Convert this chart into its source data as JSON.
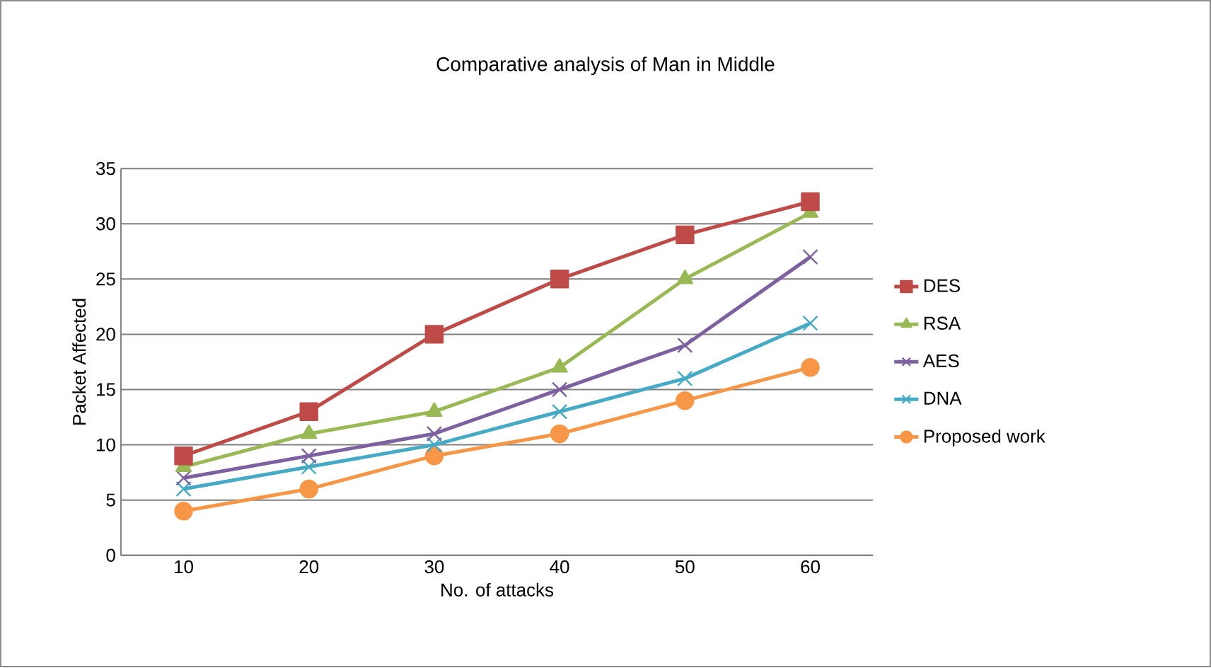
{
  "chart_data": {
    "type": "line",
    "title": "Comparative  analysis  of Man  in Middle",
    "xlabel": "No. of attacks",
    "ylabel": "Packet Affected",
    "categories": [
      "10",
      "20",
      "30",
      "40",
      "50",
      "60"
    ],
    "series": [
      {
        "name": "DES",
        "color": "#be4b48",
        "marker": "square",
        "values": [
          9,
          13,
          20,
          25,
          29,
          32
        ]
      },
      {
        "name": "RSA",
        "color": "#98b954",
        "marker": "triangle",
        "values": [
          8,
          11,
          13,
          17,
          25,
          31
        ]
      },
      {
        "name": "AES",
        "color": "#7d60a0",
        "marker": "cross",
        "values": [
          7,
          9,
          11,
          15,
          19,
          27
        ]
      },
      {
        "name": "DNA",
        "color": "#46aac5",
        "marker": "cross",
        "values": [
          6,
          8,
          10,
          13,
          16,
          21
        ]
      },
      {
        "name": "Proposed work",
        "color": "#f79646",
        "marker": "circle",
        "values": [
          4,
          6,
          9,
          11,
          14,
          17
        ]
      }
    ],
    "ylim": [
      0,
      35
    ],
    "yticks": [
      0,
      5,
      10,
      15,
      20,
      25,
      30,
      35
    ],
    "grid": "y",
    "legend": "right",
    "line_style": "solid"
  }
}
